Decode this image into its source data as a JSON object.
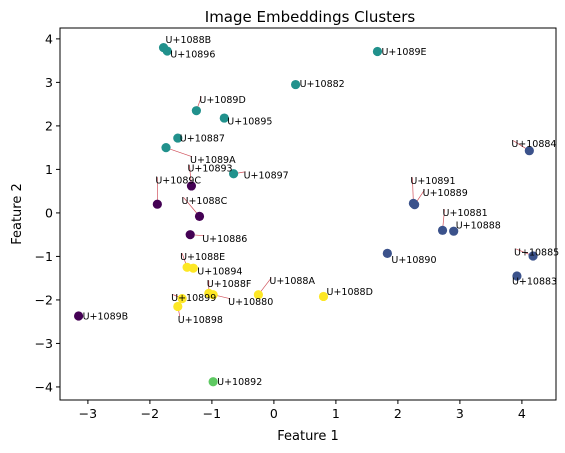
{
  "chart_data": {
    "type": "scatter",
    "title": "Image Embeddings Clusters",
    "xlabel": "Feature 1",
    "ylabel": "Feature 2",
    "xlim": [
      -3.45,
      4.55
    ],
    "ylim": [
      -4.3,
      4.25
    ],
    "xticks": [
      -3,
      -2,
      -1,
      0,
      1,
      2,
      3,
      4
    ],
    "yticks": [
      -4,
      -3,
      -2,
      -1,
      0,
      1,
      2,
      3,
      4
    ],
    "grid": false,
    "legend": "none",
    "cluster_colors": [
      "#440154",
      "#3b528b",
      "#21918c",
      "#5ec962",
      "#fde725"
    ],
    "points": [
      {
        "label": "U+1088B",
        "x": -1.78,
        "y": 3.8,
        "cluster": 2
      },
      {
        "label": "U+10896",
        "x": -1.72,
        "y": 3.72,
        "cluster": 2
      },
      {
        "label": "U+1089E",
        "x": 1.67,
        "y": 3.71,
        "cluster": 2
      },
      {
        "label": "U+10882",
        "x": 0.35,
        "y": 2.95,
        "cluster": 2
      },
      {
        "label": "U+1089D",
        "x": -1.25,
        "y": 2.35,
        "cluster": 2
      },
      {
        "label": "U+10895",
        "x": -0.8,
        "y": 2.18,
        "cluster": 2
      },
      {
        "label": "U+10887",
        "x": -1.55,
        "y": 1.72,
        "cluster": 2
      },
      {
        "label": "U+1089A",
        "x": -1.74,
        "y": 1.5,
        "cluster": 2
      },
      {
        "label": "U+10897",
        "x": -0.65,
        "y": 0.9,
        "cluster": 2
      },
      {
        "label": "U+10893",
        "x": -1.33,
        "y": 0.62,
        "cluster": 0
      },
      {
        "label": "U+1089C",
        "x": -1.88,
        "y": 0.2,
        "cluster": 0
      },
      {
        "label": "U+1088C",
        "x": -1.2,
        "y": -0.08,
        "cluster": 0
      },
      {
        "label": "U+10886",
        "x": -1.35,
        "y": -0.5,
        "cluster": 0
      },
      {
        "label": "U+1089B",
        "x": -3.15,
        "y": -2.37,
        "cluster": 0
      },
      {
        "label": "U+10884",
        "x": 4.12,
        "y": 1.43,
        "cluster": 1
      },
      {
        "label": "U+10891",
        "x": 2.25,
        "y": 0.22,
        "cluster": 1
      },
      {
        "label": "U+10889",
        "x": 2.27,
        "y": 0.19,
        "cluster": 1
      },
      {
        "label": "U+10881",
        "x": 2.72,
        "y": -0.4,
        "cluster": 1
      },
      {
        "label": "U+10888",
        "x": 2.9,
        "y": -0.42,
        "cluster": 1
      },
      {
        "label": "U+10890",
        "x": 1.83,
        "y": -0.93,
        "cluster": 1
      },
      {
        "label": "U+10885",
        "x": 4.18,
        "y": -0.99,
        "cluster": 1
      },
      {
        "label": "U+10883",
        "x": 3.92,
        "y": -1.45,
        "cluster": 1
      },
      {
        "label": "U+1088E",
        "x": -1.4,
        "y": -1.25,
        "cluster": 4
      },
      {
        "label": "U+10894",
        "x": -1.3,
        "y": -1.27,
        "cluster": 4
      },
      {
        "label": "U+1088F",
        "x": -1.05,
        "y": -1.85,
        "cluster": 4
      },
      {
        "label": "U+10880",
        "x": -0.98,
        "y": -1.88,
        "cluster": 4
      },
      {
        "label": "U+1088A",
        "x": -0.25,
        "y": -1.88,
        "cluster": 4
      },
      {
        "label": "U+1088D",
        "x": 0.8,
        "y": -1.92,
        "cluster": 4
      },
      {
        "label": "U+10899",
        "x": -1.48,
        "y": -1.97,
        "cluster": 4
      },
      {
        "label": "U+10898",
        "x": -1.55,
        "y": -2.15,
        "cluster": 4
      },
      {
        "label": "U+10892",
        "x": -0.98,
        "y": -3.88,
        "cluster": 3
      }
    ]
  }
}
